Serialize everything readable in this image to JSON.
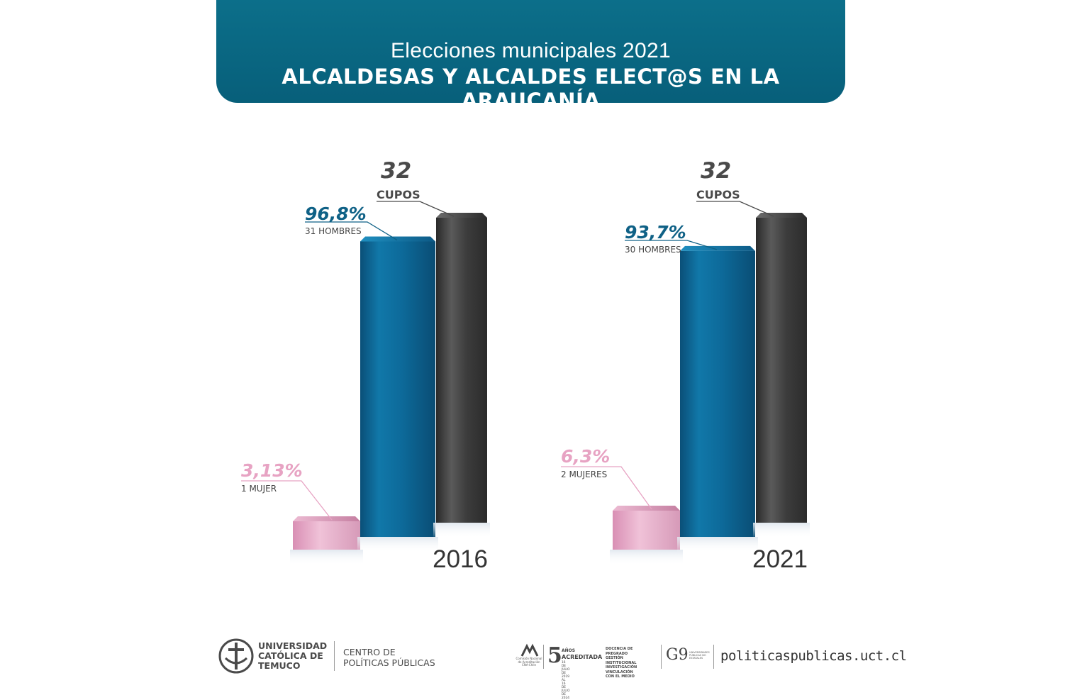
{
  "header": {
    "subtitle": "Elecciones municipales 2021",
    "title": "ALCALDESAS Y ALCALDES ELECT@S EN LA ARAUCANÍA"
  },
  "chart_data": [
    {
      "type": "bar",
      "title": "2016",
      "categories": [
        "Mujeres",
        "Hombres",
        "Cupos"
      ],
      "values": [
        1,
        31,
        32
      ],
      "value_labels": [
        "3,13%",
        "96,8%",
        "32"
      ],
      "sub_labels": [
        "1 MUJER",
        "31 HOMBRES",
        "CUPOS"
      ],
      "colors": [
        "#e9b6cf",
        "#0b6594",
        "#3a3a3a"
      ],
      "label_colors": [
        "#e7a3c3",
        "#0f6186",
        "#4a4a4a"
      ],
      "grid": false
    },
    {
      "type": "bar",
      "title": "2021",
      "categories": [
        "Mujeres",
        "Hombres",
        "Cupos"
      ],
      "values": [
        2,
        30,
        32
      ],
      "value_labels": [
        "6,3%",
        "93,7%",
        "32"
      ],
      "sub_labels": [
        "2 MUJERES",
        "30 HOMBRES",
        "CUPOS"
      ],
      "colors": [
        "#e9b6cf",
        "#0b6594",
        "#3a3a3a"
      ],
      "label_colors": [
        "#e7a3c3",
        "#0f6186",
        "#4a4a4a"
      ],
      "grid": false
    }
  ],
  "footer": {
    "university": [
      "UNIVERSIDAD",
      "CATÓLICA DE",
      "TEMUCO"
    ],
    "center": [
      "CENTRO DE",
      "POLÍTICAS PÚBLICAS"
    ],
    "cna_text": [
      "Comisión Nacional",
      "de Acreditación",
      "CNA-Chile"
    ],
    "accreditation_number": "5",
    "accreditation_words": [
      "AÑOS",
      "ACREDITADA"
    ],
    "accreditation_dates": [
      "16 DE JULIO DE 2019",
      "AL 16 DE JULIO DE 2024"
    ],
    "accreditation_areas": [
      "DOCENCIA DE PREGRADO",
      "GESTIÓN INSTITUCIONAL",
      "INVESTIGACIÓN",
      "VINCULACIÓN CON EL MEDIO"
    ],
    "g9": "G9",
    "g9_sub": [
      "UNIVERSIDADES",
      "PÚBLICAS NO",
      "ESTATALES"
    ],
    "website": "politicaspublicas.uct.cl"
  }
}
